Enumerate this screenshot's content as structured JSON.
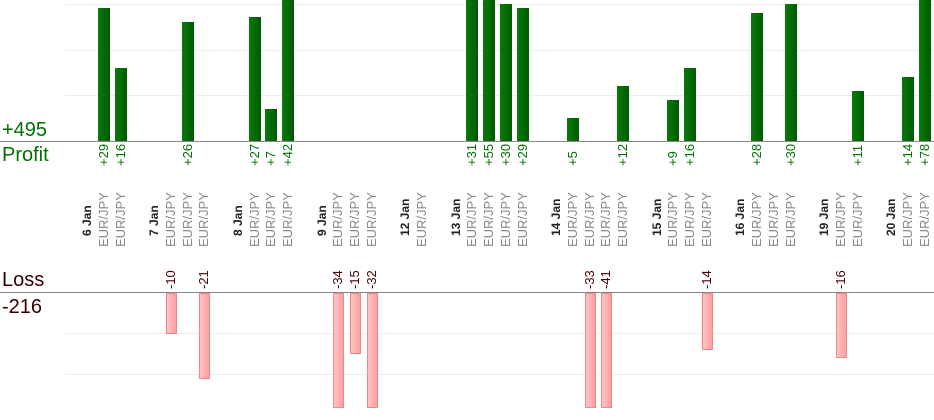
{
  "summary": {
    "profit_total": "+495",
    "profit_label": "Profit",
    "loss_label": "Loss",
    "loss_total": "-216"
  },
  "colors": {
    "profit": "#006400",
    "loss": "#ffb0b0",
    "loss_text": "#440000"
  },
  "chart_data": {
    "type": "bar",
    "title": "",
    "profit_ylim": [
      0,
      30
    ],
    "loss_ylim": [
      0,
      28
    ],
    "grid": true,
    "days": [
      {
        "label": "6 Jan",
        "trades": [
          {
            "symbol": "EUR/JPY",
            "value": 29
          },
          {
            "symbol": "EUR/JPY",
            "value": 16
          }
        ]
      },
      {
        "label": "7 Jan",
        "trades": [
          {
            "symbol": "EUR/JPY",
            "value": -10
          },
          {
            "symbol": "EUR/JPY",
            "value": 26
          },
          {
            "symbol": "EUR/JPY",
            "value": -21
          }
        ]
      },
      {
        "label": "8 Jan",
        "trades": [
          {
            "symbol": "EUR/JPY",
            "value": 27
          },
          {
            "symbol": "EUR/JPY",
            "value": 7
          },
          {
            "symbol": "EUR/JPY",
            "value": 42
          }
        ]
      },
      {
        "label": "9 Jan",
        "trades": [
          {
            "symbol": "EUR/JPY",
            "value": -34
          },
          {
            "symbol": "EUR/JPY",
            "value": -15
          },
          {
            "symbol": "EUR/JPY",
            "value": -32
          }
        ]
      },
      {
        "label": "12 Jan",
        "trades": [
          {
            "symbol": "EUR/JPY",
            "value": null
          }
        ]
      },
      {
        "label": "13 Jan",
        "trades": [
          {
            "symbol": "EUR/JPY",
            "value": 31
          },
          {
            "symbol": "EUR/JPY",
            "value": 55
          },
          {
            "symbol": "EUR/JPY",
            "value": 30
          },
          {
            "symbol": "EUR/JPY",
            "value": 29
          }
        ]
      },
      {
        "label": "14 Jan",
        "trades": [
          {
            "symbol": "EUR/JPY",
            "value": 5
          },
          {
            "symbol": "EUR/JPY",
            "value": -33
          },
          {
            "symbol": "EUR/JPY",
            "value": -41
          },
          {
            "symbol": "EUR/JPY",
            "value": 12
          }
        ]
      },
      {
        "label": "15 Jan",
        "trades": [
          {
            "symbol": "EUR/JPY",
            "value": 9
          },
          {
            "symbol": "EUR/JPY",
            "value": 16
          },
          {
            "symbol": "EUR/JPY",
            "value": -14
          }
        ]
      },
      {
        "label": "16 Jan",
        "trades": [
          {
            "symbol": "EUR/JPY",
            "value": 28
          },
          {
            "symbol": "EUR/JPY",
            "value": null
          },
          {
            "symbol": "EUR/JPY",
            "value": 30
          }
        ]
      },
      {
        "label": "19 Jan",
        "trades": [
          {
            "symbol": "EUR/JPY",
            "value": -16
          },
          {
            "symbol": "EUR/JPY",
            "value": 11
          }
        ]
      },
      {
        "label": "20 Jan",
        "trades": [
          {
            "symbol": "EUR/JPY",
            "value": 14
          },
          {
            "symbol": "EUR/JPY",
            "value": 78
          }
        ]
      }
    ]
  }
}
